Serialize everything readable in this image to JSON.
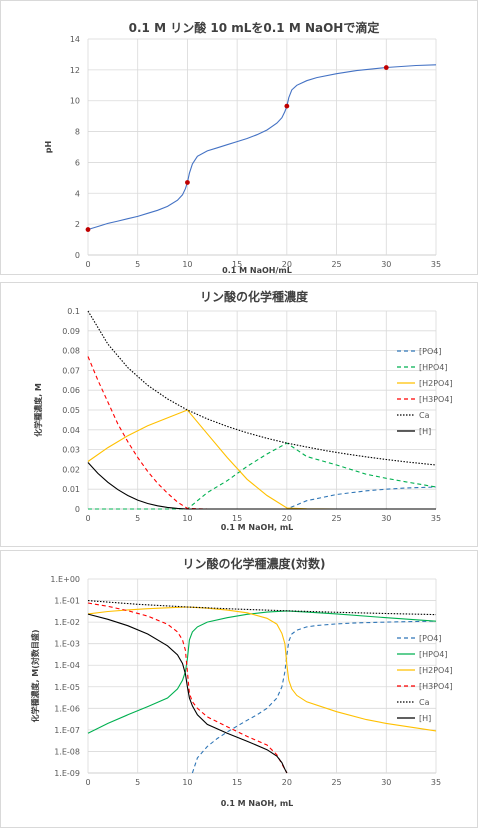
{
  "chart_data": [
    {
      "type": "line",
      "title": "0.1 M リン酸 10 mLを0.1 M NaOHで滴定",
      "xlabel": "0.1 M NaOH/mL",
      "ylabel": "pH",
      "xlim": [
        0,
        35
      ],
      "ylim": [
        0,
        14
      ],
      "xticks": [
        "0",
        "5",
        "10",
        "15",
        "20",
        "25",
        "30",
        "35"
      ],
      "yticks": [
        "0",
        "2",
        "4",
        "6",
        "8",
        "10",
        "12",
        "14"
      ],
      "grid": true,
      "series": [
        {
          "color": "#4472c4",
          "x": [
            0,
            1,
            2,
            3,
            4,
            5,
            6,
            7,
            8,
            9,
            9.5,
            9.8,
            10,
            10.2,
            10.5,
            11,
            12,
            13,
            14,
            15,
            16,
            17,
            18,
            19,
            19.5,
            19.8,
            20,
            20.2,
            20.5,
            21,
            22,
            23,
            25,
            27,
            30,
            33,
            35
          ],
          "y": [
            1.65,
            1.85,
            2.05,
            2.2,
            2.35,
            2.5,
            2.7,
            2.9,
            3.15,
            3.55,
            3.9,
            4.3,
            4.7,
            5.3,
            5.9,
            6.4,
            6.75,
            6.95,
            7.15,
            7.35,
            7.55,
            7.8,
            8.1,
            8.55,
            8.9,
            9.3,
            9.65,
            10.2,
            10.7,
            11.0,
            11.3,
            11.5,
            11.75,
            11.95,
            12.15,
            12.28,
            12.33
          ]
        }
      ],
      "markers": {
        "color": "#c00000",
        "x": [
          0,
          10,
          20,
          30
        ],
        "y": [
          1.65,
          4.7,
          9.65,
          12.15
        ]
      }
    },
    {
      "type": "line",
      "title": "リン酸の化学種濃度",
      "xlabel": "0.1 M NaOH, mL",
      "ylabel": "化学種濃度, M",
      "xlim": [
        0,
        35
      ],
      "ylim": [
        0,
        0.1
      ],
      "xticks": [
        "0",
        "5",
        "10",
        "15",
        "20",
        "25",
        "30",
        "35"
      ],
      "yticks": [
        "0",
        "0.01",
        "0.02",
        "0.03",
        "0.04",
        "0.05",
        "0.06",
        "0.07",
        "0.08",
        "0.09",
        "0.1"
      ],
      "grid": true,
      "legend_position": "right",
      "series": [
        {
          "name": "[PO4]",
          "color": "#2e75b6",
          "dash": "dash",
          "x": [
            0,
            10,
            20,
            22,
            25,
            28,
            30,
            32,
            35
          ],
          "y": [
            0,
            0,
            0,
            0.0042,
            0.0073,
            0.0092,
            0.01,
            0.0106,
            0.0111
          ]
        },
        {
          "name": "[HPO4]",
          "color": "#00b050",
          "dash": "dash",
          "x": [
            0,
            10,
            12,
            14,
            16,
            18,
            20,
            22,
            25,
            28,
            30,
            32,
            35
          ],
          "y": [
            0,
            0,
            0.0083,
            0.0143,
            0.0215,
            0.0278,
            0.0333,
            0.0265,
            0.0222,
            0.0175,
            0.0155,
            0.0137,
            0.0111
          ]
        },
        {
          "name": "[H2PO4]",
          "color": "#ffc000",
          "dash": "solid",
          "x": [
            0,
            2,
            4,
            6,
            8,
            10,
            12,
            14,
            16,
            18,
            20,
            22,
            25,
            28,
            30,
            32,
            35
          ],
          "y": [
            0.024,
            0.031,
            0.037,
            0.042,
            0.046,
            0.05,
            0.038,
            0.026,
            0.015,
            0.0068,
            0.0005,
            0.0001,
            0,
            0,
            0,
            0,
            0
          ]
        },
        {
          "name": "[H3PO4]",
          "color": "#ff0000",
          "dash": "dash",
          "x": [
            0,
            1,
            2,
            3,
            4,
            5,
            6,
            7,
            8,
            9,
            10,
            12,
            15,
            20,
            25,
            30,
            35
          ],
          "y": [
            0.077,
            0.065,
            0.054,
            0.043,
            0.034,
            0.026,
            0.019,
            0.013,
            0.008,
            0.0035,
            0.0003,
            0,
            0,
            0,
            0,
            0,
            0
          ]
        },
        {
          "name": "Ca",
          "color": "#000000",
          "dash": "dot",
          "x": [
            0,
            2,
            4,
            6,
            8,
            10,
            12,
            14,
            16,
            18,
            20,
            22,
            24,
            26,
            28,
            30,
            32,
            35
          ],
          "y": [
            0.1,
            0.0833,
            0.0714,
            0.0625,
            0.0556,
            0.05,
            0.0455,
            0.0417,
            0.0385,
            0.0357,
            0.0333,
            0.0313,
            0.0294,
            0.0278,
            0.0263,
            0.025,
            0.0238,
            0.0222
          ]
        },
        {
          "name": "[H]",
          "color": "#000000",
          "dash": "solid",
          "x": [
            0,
            1,
            2,
            3,
            4,
            5,
            6,
            7,
            8,
            9,
            10,
            12,
            15,
            20,
            25,
            30,
            35
          ],
          "y": [
            0.0235,
            0.018,
            0.0135,
            0.0098,
            0.0068,
            0.0045,
            0.0028,
            0.0016,
            0.0008,
            0.0003,
            2e-05,
            0,
            0,
            0,
            0,
            0,
            0
          ]
        }
      ]
    },
    {
      "type": "line",
      "title": "リン酸の化学種濃度(対数)",
      "xlabel": "0.1 M NaOH, mL",
      "ylabel": "化学種濃度, M(対数目盛)",
      "xlim": [
        0,
        35
      ],
      "ylim": [
        1e-09,
        1
      ],
      "log_y": true,
      "xticks": [
        "0",
        "5",
        "10",
        "15",
        "20",
        "25",
        "30",
        "35"
      ],
      "yticks": [
        "1.E-09",
        "1.E-08",
        "1.E-07",
        "1.E-06",
        "1.E-05",
        "1.E-04",
        "1.E-03",
        "1.E-02",
        "1.E-01",
        "1.E+00"
      ],
      "grid": true,
      "legend_position": "right",
      "series": [
        {
          "name": "[PO4]",
          "color": "#2e75b6",
          "dash": "dash",
          "x": [
            10.5,
            11,
            12,
            13,
            14,
            15,
            16,
            17,
            18,
            19,
            19.5,
            19.8,
            20,
            20.2,
            20.5,
            21,
            22,
            23,
            25,
            27,
            30,
            33,
            35
          ],
          "y": [
            1e-09,
            5e-09,
            1.7e-08,
            4e-08,
            8e-08,
            1.5e-07,
            2.8e-07,
            5e-07,
            1e-06,
            3e-06,
            1e-05,
            5e-05,
            0.0003,
            0.0013,
            0.0028,
            0.0042,
            0.006,
            0.007,
            0.0083,
            0.0092,
            0.01,
            0.0107,
            0.0111
          ]
        },
        {
          "name": "[HPO4]",
          "color": "#00b050",
          "dash": "solid",
          "x": [
            0,
            2,
            4,
            6,
            8,
            9,
            9.5,
            9.8,
            10,
            10.2,
            10.5,
            11,
            12,
            14,
            16,
            18,
            20,
            22,
            25,
            30,
            35
          ],
          "y": [
            7e-08,
            2e-07,
            5e-07,
            1.2e-06,
            3e-06,
            8e-06,
            2e-05,
            5e-05,
            0.0002,
            0.0015,
            0.0035,
            0.006,
            0.01,
            0.016,
            0.023,
            0.029,
            0.033,
            0.029,
            0.024,
            0.016,
            0.011
          ]
        },
        {
          "name": "[H2PO4]",
          "color": "#ffc000",
          "dash": "solid",
          "x": [
            0,
            2,
            4,
            6,
            8,
            10,
            12,
            14,
            16,
            18,
            19,
            19.5,
            19.8,
            20,
            20.2,
            20.5,
            21,
            22,
            25,
            28,
            30,
            35
          ],
          "y": [
            0.024,
            0.031,
            0.037,
            0.042,
            0.046,
            0.05,
            0.044,
            0.036,
            0.027,
            0.015,
            0.008,
            0.003,
            0.001,
            0.0001,
            2e-05,
            8e-06,
            4e-06,
            2e-06,
            7e-07,
            3e-07,
            2e-07,
            9e-08
          ]
        },
        {
          "name": "[H3PO4]",
          "color": "#ff0000",
          "dash": "dash",
          "x": [
            0,
            2,
            4,
            6,
            8,
            9,
            9.5,
            9.8,
            10,
            10.2,
            10.5,
            11,
            12,
            14,
            16,
            18,
            19,
            20
          ],
          "y": [
            0.077,
            0.054,
            0.034,
            0.019,
            0.008,
            0.0035,
            0.0015,
            0.0005,
            5e-05,
            5e-06,
            2e-06,
            1e-06,
            4e-07,
            1.4e-07,
            5e-08,
            2e-08,
            7e-09,
            1e-09
          ]
        },
        {
          "name": "Ca",
          "color": "#000000",
          "dash": "dot",
          "x": [
            0,
            5,
            10,
            15,
            20,
            25,
            30,
            35
          ],
          "y": [
            0.1,
            0.0667,
            0.05,
            0.04,
            0.0333,
            0.0286,
            0.025,
            0.0222
          ]
        },
        {
          "name": "[H]",
          "color": "#000000",
          "dash": "solid",
          "x": [
            0,
            2,
            4,
            6,
            8,
            9,
            9.5,
            9.8,
            10,
            10.2,
            10.5,
            11,
            12,
            14,
            16,
            18,
            19,
            19.5,
            19.8,
            20
          ],
          "y": [
            0.0235,
            0.0135,
            0.0068,
            0.0028,
            0.0008,
            0.0003,
            0.00012,
            4e-05,
            1e-05,
            3e-06,
            1.3e-06,
            5e-07,
            1.8e-07,
            7e-08,
            3e-08,
            1.2e-08,
            6e-09,
            3e-09,
            1.5e-09,
            1e-09
          ]
        }
      ]
    }
  ]
}
